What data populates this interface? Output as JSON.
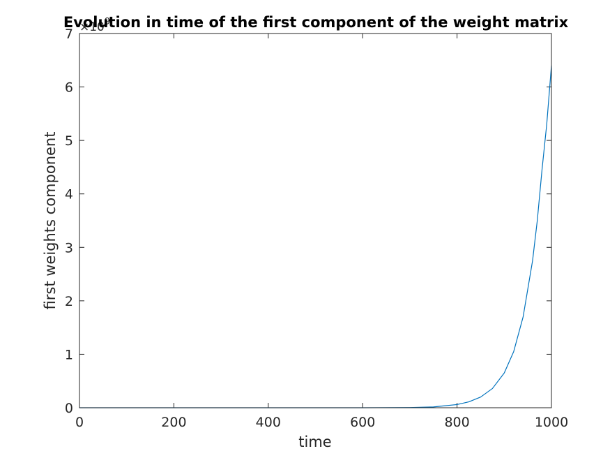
{
  "chart_data": {
    "type": "line",
    "title": "Evolution in time of the first component of the weight matrix",
    "xlabel": "time",
    "ylabel": "first weights component",
    "xlim": [
      0,
      1000
    ],
    "ylim": [
      0,
      7000000000
    ],
    "y_exponent": {
      "base": "×10",
      "power": "9"
    },
    "xticks": [
      0,
      200,
      400,
      600,
      800,
      1000
    ],
    "yticks": [
      0,
      1,
      2,
      3,
      4,
      5,
      6,
      7
    ],
    "grid": false,
    "series": [
      {
        "color": "#0072BD",
        "x": [
          0,
          100,
          200,
          300,
          400,
          500,
          600,
          700,
          750,
          800,
          825,
          850,
          875,
          900,
          920,
          940,
          960,
          970,
          980,
          990,
          1000
        ],
        "y": [
          0,
          0,
          0,
          0,
          0,
          0,
          0,
          4000000,
          15000000,
          60000000,
          110000000,
          200000000,
          360000000,
          650000000,
          1050000000,
          1700000000,
          2750000000,
          3500000000,
          4450000000,
          5300000000,
          6400000000
        ]
      }
    ]
  }
}
